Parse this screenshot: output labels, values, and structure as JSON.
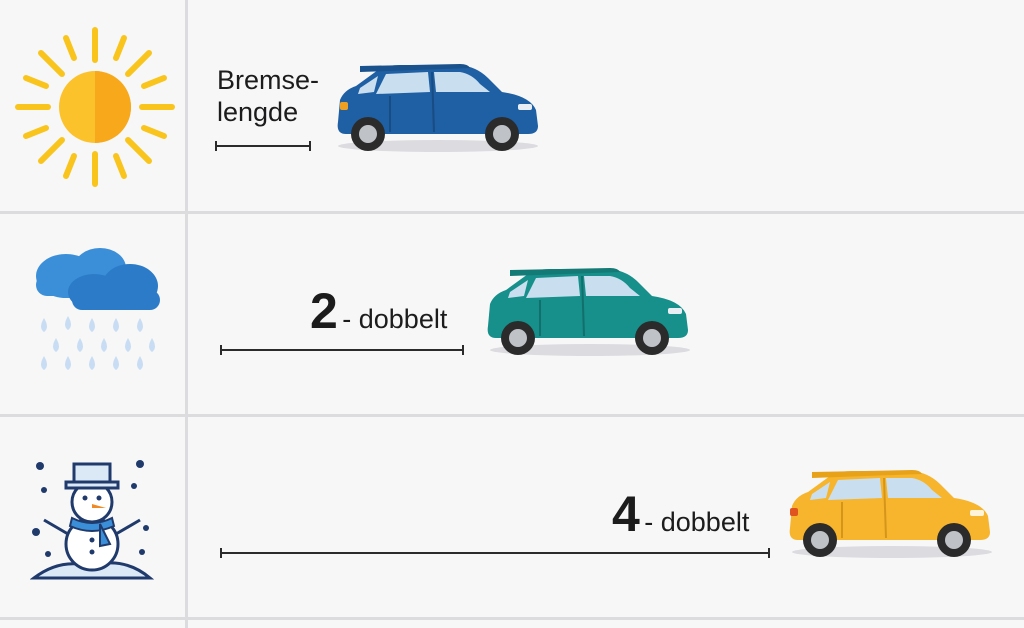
{
  "row_sun": {
    "icon": "sun-icon",
    "label_line1": "Bremse-",
    "label_line2": "lengde",
    "car_color": "#1f5fa3"
  },
  "row_rain": {
    "icon": "rain-cloud-icon",
    "multiplier": "2",
    "suffix": "- dobbelt",
    "car_color": "#178f8a"
  },
  "row_snow": {
    "icon": "snowman-icon",
    "multiplier": "4",
    "suffix": "- dobbelt",
    "car_color": "#f6b52d"
  }
}
